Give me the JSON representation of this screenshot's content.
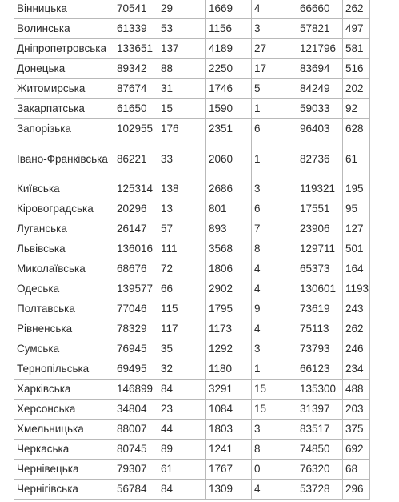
{
  "table": {
    "rows": [
      {
        "region": "Вінницька",
        "values": [
          "70541",
          "29",
          "1669",
          "4",
          "66660",
          "262"
        ]
      },
      {
        "region": "Волинська",
        "values": [
          "61339",
          "53",
          "1156",
          "3",
          "57821",
          "497"
        ]
      },
      {
        "region": "Дніпропетровська",
        "values": [
          "133651",
          "137",
          "4189",
          "27",
          "121796",
          "581"
        ]
      },
      {
        "region": "Донецька",
        "values": [
          "89342",
          "88",
          "2250",
          "17",
          "83694",
          "516"
        ]
      },
      {
        "region": "Житомирська",
        "values": [
          "87674",
          "31",
          "1746",
          "5",
          "84249",
          "202"
        ]
      },
      {
        "region": "Закарпатська",
        "values": [
          "61650",
          "15",
          "1590",
          "1",
          "59033",
          "92"
        ]
      },
      {
        "region": "Запорізька",
        "values": [
          "102955",
          "176",
          "2351",
          "6",
          "96403",
          "628"
        ]
      },
      {
        "region": "Івано-Франківська",
        "values": [
          "86221",
          "33",
          "2060",
          "1",
          "82736",
          "61"
        ]
      },
      {
        "region": "Київська",
        "values": [
          "125314",
          "138",
          "2686",
          "3",
          "119321",
          "195"
        ]
      },
      {
        "region": "Кіровоградська",
        "values": [
          "20296",
          "13",
          "801",
          "6",
          "17551",
          "95"
        ]
      },
      {
        "region": "Луганська",
        "values": [
          "26147",
          "57",
          "893",
          "7",
          "23906",
          "127"
        ]
      },
      {
        "region": "Львівська",
        "values": [
          "136016",
          "111",
          "3568",
          "8",
          "129711",
          "501"
        ]
      },
      {
        "region": "Миколаївська",
        "values": [
          "68676",
          "72",
          "1806",
          "4",
          "65373",
          "164"
        ]
      },
      {
        "region": "Одеська",
        "values": [
          "139577",
          "66",
          "2902",
          "4",
          "130601",
          "1193"
        ]
      },
      {
        "region": "Полтавська",
        "values": [
          "77046",
          "115",
          "1795",
          "9",
          "73619",
          "243"
        ]
      },
      {
        "region": "Рівненська",
        "values": [
          "78329",
          "117",
          "1173",
          "4",
          "75113",
          "262"
        ]
      },
      {
        "region": "Сумська",
        "values": [
          "76945",
          "35",
          "1292",
          "3",
          "73793",
          "246"
        ]
      },
      {
        "region": "Тернопільська",
        "values": [
          "69495",
          "32",
          "1180",
          "1",
          "66123",
          "234"
        ]
      },
      {
        "region": "Харківська",
        "values": [
          "146899",
          "84",
          "3291",
          "15",
          "135300",
          "488"
        ]
      },
      {
        "region": "Херсонська",
        "values": [
          "34804",
          "23",
          "1084",
          "15",
          "31397",
          "203"
        ]
      },
      {
        "region": "Хмельницька",
        "values": [
          "88007",
          "44",
          "1803",
          "3",
          "83517",
          "375"
        ]
      },
      {
        "region": "Черкаська",
        "values": [
          "80745",
          "89",
          "1241",
          "8",
          "74850",
          "692"
        ]
      },
      {
        "region": "Чернівецька",
        "values": [
          "79307",
          "61",
          "1767",
          "0",
          "76320",
          "68"
        ]
      },
      {
        "region": "Чернігівська",
        "values": [
          "56784",
          "84",
          "1309",
          "4",
          "53728",
          "296"
        ]
      }
    ]
  }
}
